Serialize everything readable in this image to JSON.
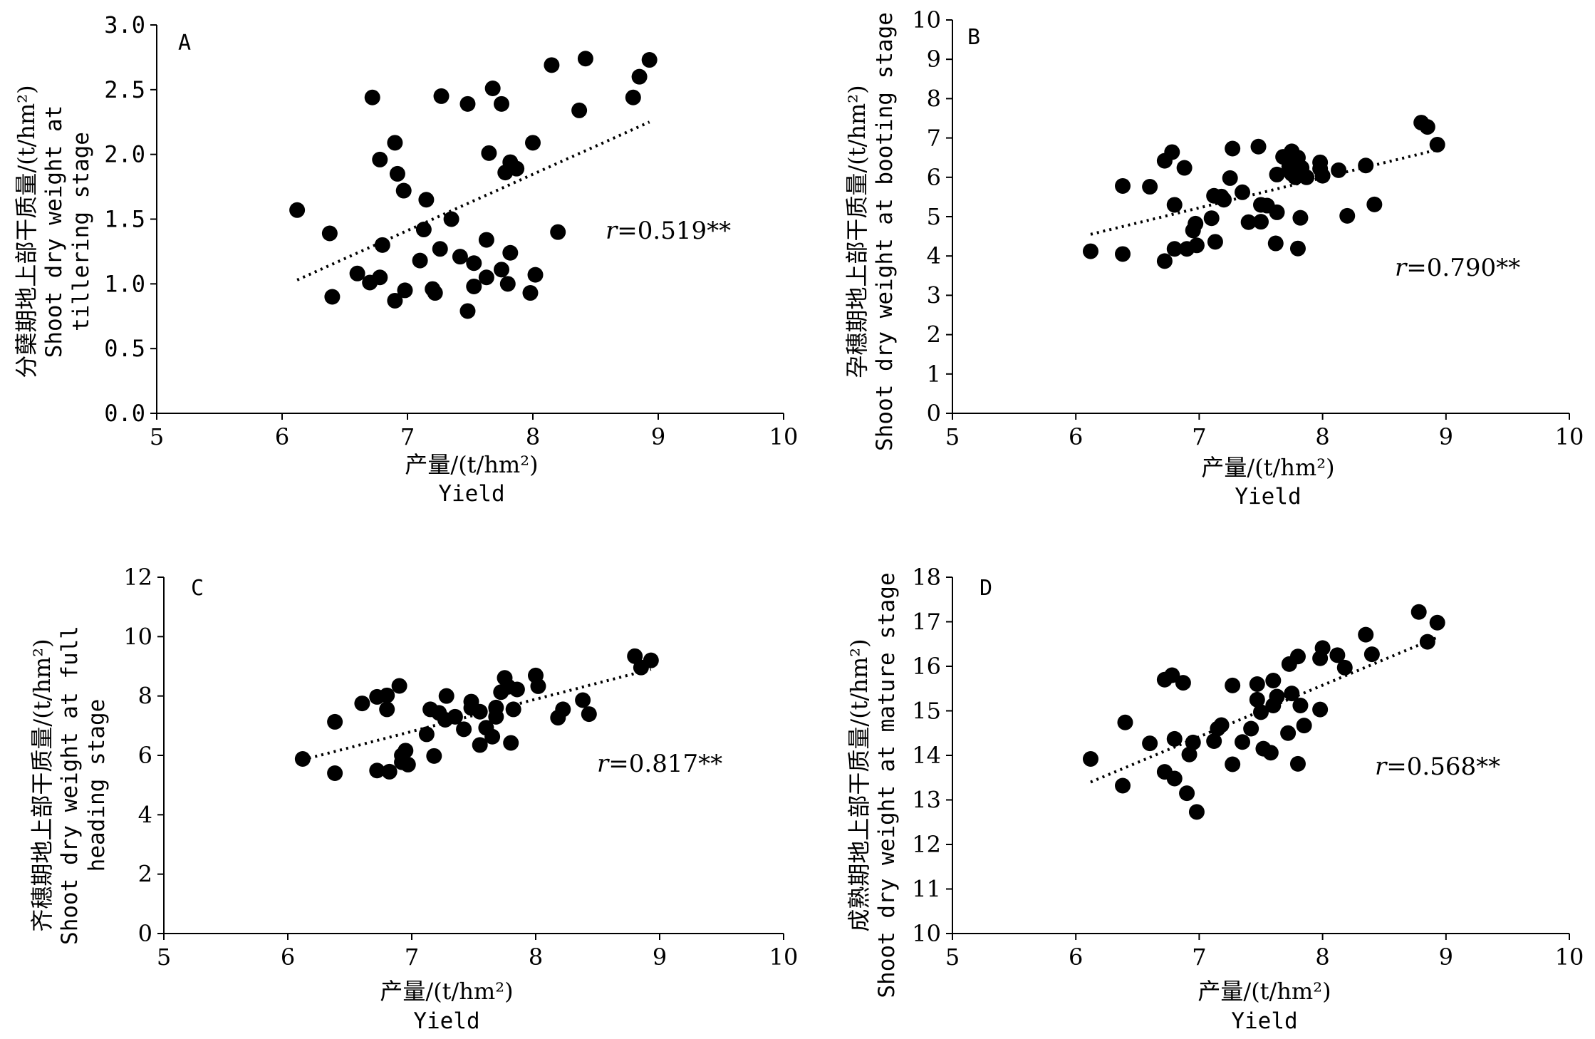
{
  "chart_data": [
    {
      "id": "A",
      "type": "scatter",
      "panel_label": "A",
      "xlabel_cn": "产量/(t/hm²)",
      "xlabel_en": "Yield",
      "ylabel_lines": [
        "分蘖期地上部干质量/(t/hm²)",
        "Shoot dry weight at",
        "tillering stage"
      ],
      "xlim": [
        5,
        10
      ],
      "xticks": [
        "5",
        "6",
        "7",
        "8",
        "9",
        "10"
      ],
      "ylim": [
        0,
        3
      ],
      "yticks": [
        "0.0",
        "0.5",
        "1.0",
        "1.5",
        "2.0",
        "2.5",
        "3.0"
      ],
      "r_label": "r",
      "r_value": "=0.519**",
      "trend": {
        "x": [
          6.12,
          8.93
        ],
        "y": [
          1.03,
          2.25
        ]
      },
      "points": [
        [
          6.12,
          1.57
        ],
        [
          6.38,
          1.39
        ],
        [
          6.4,
          0.9
        ],
        [
          6.6,
          1.08
        ],
        [
          6.7,
          1.01
        ],
        [
          6.72,
          2.44
        ],
        [
          6.78,
          1.05
        ],
        [
          6.78,
          1.96
        ],
        [
          6.8,
          1.3
        ],
        [
          6.9,
          2.09
        ],
        [
          6.9,
          0.87
        ],
        [
          6.92,
          1.85
        ],
        [
          6.97,
          1.72
        ],
        [
          6.98,
          0.95
        ],
        [
          7.1,
          1.18
        ],
        [
          7.13,
          1.42
        ],
        [
          7.15,
          1.65
        ],
        [
          7.2,
          0.96
        ],
        [
          7.22,
          0.93
        ],
        [
          7.26,
          1.27
        ],
        [
          7.27,
          2.45
        ],
        [
          7.35,
          1.5
        ],
        [
          7.42,
          1.21
        ],
        [
          7.48,
          0.79
        ],
        [
          7.48,
          2.39
        ],
        [
          7.53,
          0.98
        ],
        [
          7.53,
          1.16
        ],
        [
          7.63,
          1.05
        ],
        [
          7.63,
          1.34
        ],
        [
          7.65,
          2.01
        ],
        [
          7.68,
          2.51
        ],
        [
          7.75,
          1.11
        ],
        [
          7.75,
          2.39
        ],
        [
          7.78,
          1.86
        ],
        [
          7.8,
          1.0
        ],
        [
          7.82,
          1.24
        ],
        [
          7.82,
          1.94
        ],
        [
          7.87,
          1.89
        ],
        [
          7.98,
          0.93
        ],
        [
          8.0,
          2.09
        ],
        [
          8.02,
          1.07
        ],
        [
          8.15,
          2.69
        ],
        [
          8.2,
          1.4
        ],
        [
          8.37,
          2.34
        ],
        [
          8.42,
          2.74
        ],
        [
          8.8,
          2.44
        ],
        [
          8.85,
          2.6
        ],
        [
          8.93,
          2.73
        ]
      ]
    },
    {
      "id": "B",
      "type": "scatter",
      "panel_label": "B",
      "xlabel_cn": "产量/(t/hm²)",
      "xlabel_en": "Yield",
      "ylabel_lines": [
        "孕穗期地上部干质量/(t/hm²)",
        "Shoot dry weight at booting stage"
      ],
      "xlim": [
        5,
        10
      ],
      "xticks": [
        "5",
        "6",
        "7",
        "8",
        "9",
        "10"
      ],
      "ylim": [
        0,
        10
      ],
      "yticks": [
        "0",
        "1",
        "2",
        "3",
        "4",
        "5",
        "6",
        "7",
        "8",
        "9",
        "10"
      ],
      "r_label": "r",
      "r_value": "=0.790**",
      "trend": {
        "x": [
          6.12,
          8.93
        ],
        "y": [
          4.55,
          6.7
        ]
      },
      "points": [
        [
          6.12,
          4.12
        ],
        [
          6.38,
          4.05
        ],
        [
          6.38,
          5.78
        ],
        [
          6.6,
          5.76
        ],
        [
          6.72,
          3.87
        ],
        [
          6.72,
          6.42
        ],
        [
          6.78,
          6.64
        ],
        [
          6.8,
          5.3
        ],
        [
          6.8,
          4.18
        ],
        [
          6.88,
          6.24
        ],
        [
          6.9,
          4.18
        ],
        [
          6.95,
          4.65
        ],
        [
          6.97,
          4.82
        ],
        [
          6.98,
          4.27
        ],
        [
          7.1,
          4.96
        ],
        [
          7.12,
          5.53
        ],
        [
          7.13,
          4.36
        ],
        [
          7.18,
          5.51
        ],
        [
          7.2,
          5.43
        ],
        [
          7.25,
          5.98
        ],
        [
          7.27,
          6.73
        ],
        [
          7.35,
          5.62
        ],
        [
          7.4,
          4.86
        ],
        [
          7.48,
          6.78
        ],
        [
          7.5,
          5.3
        ],
        [
          7.5,
          4.87
        ],
        [
          7.55,
          5.28
        ],
        [
          7.62,
          4.32
        ],
        [
          7.63,
          6.07
        ],
        [
          7.63,
          5.11
        ],
        [
          7.68,
          6.52
        ],
        [
          7.73,
          6.28
        ],
        [
          7.75,
          6.09
        ],
        [
          7.75,
          6.66
        ],
        [
          7.78,
          6.0
        ],
        [
          7.8,
          6.5
        ],
        [
          7.8,
          4.19
        ],
        [
          7.82,
          4.97
        ],
        [
          7.83,
          6.24
        ],
        [
          7.87,
          6.0
        ],
        [
          7.98,
          6.38
        ],
        [
          7.98,
          6.22
        ],
        [
          8.0,
          6.04
        ],
        [
          8.13,
          6.18
        ],
        [
          8.2,
          5.02
        ],
        [
          8.35,
          6.3
        ],
        [
          8.42,
          5.31
        ],
        [
          8.8,
          7.39
        ],
        [
          8.85,
          7.28
        ],
        [
          8.93,
          6.83
        ]
      ]
    },
    {
      "id": "C",
      "type": "scatter",
      "panel_label": "C",
      "xlabel_cn": "产量/(t/hm²)",
      "xlabel_en": "Yield",
      "ylabel_lines": [
        "齐穗期地上部干质量/(t/hm²)",
        "Shoot dry weight at full",
        "heading stage"
      ],
      "xlim": [
        5,
        10
      ],
      "xticks": [
        "5",
        "6",
        "7",
        "8",
        "9",
        "10"
      ],
      "ylim": [
        0,
        12
      ],
      "yticks": [
        "0",
        "2",
        "4",
        "6",
        "8",
        "10",
        "12"
      ],
      "r_label": "r",
      "r_value": "=0.817**",
      "trend": {
        "x": [
          6.12,
          8.93
        ],
        "y": [
          5.85,
          8.9
        ]
      },
      "points": [
        [
          6.12,
          5.88
        ],
        [
          6.38,
          5.4
        ],
        [
          6.38,
          7.13
        ],
        [
          6.6,
          7.75
        ],
        [
          6.72,
          5.49
        ],
        [
          6.72,
          7.97
        ],
        [
          6.8,
          8.02
        ],
        [
          6.8,
          7.55
        ],
        [
          6.82,
          5.45
        ],
        [
          6.9,
          8.34
        ],
        [
          6.92,
          6.0
        ],
        [
          6.92,
          5.77
        ],
        [
          6.95,
          6.16
        ],
        [
          6.97,
          5.69
        ],
        [
          7.12,
          6.71
        ],
        [
          7.15,
          7.55
        ],
        [
          7.18,
          5.98
        ],
        [
          7.22,
          7.43
        ],
        [
          7.27,
          7.2
        ],
        [
          7.28,
          8.0
        ],
        [
          7.35,
          7.3
        ],
        [
          7.42,
          6.88
        ],
        [
          7.48,
          7.81
        ],
        [
          7.48,
          7.6
        ],
        [
          7.55,
          7.47
        ],
        [
          7.55,
          6.35
        ],
        [
          7.6,
          6.93
        ],
        [
          7.65,
          6.63
        ],
        [
          7.68,
          7.61
        ],
        [
          7.68,
          7.3
        ],
        [
          7.72,
          8.13
        ],
        [
          7.75,
          8.61
        ],
        [
          7.78,
          8.31
        ],
        [
          7.8,
          6.42
        ],
        [
          7.82,
          7.55
        ],
        [
          7.85,
          8.22
        ],
        [
          8.0,
          8.69
        ],
        [
          8.02,
          8.33
        ],
        [
          8.18,
          7.27
        ],
        [
          8.22,
          7.55
        ],
        [
          8.38,
          7.86
        ],
        [
          8.43,
          7.39
        ],
        [
          8.8,
          9.34
        ],
        [
          8.85,
          8.96
        ],
        [
          8.93,
          9.2
        ]
      ]
    },
    {
      "id": "D",
      "type": "scatter",
      "panel_label": "D",
      "xlabel_cn": "产量/(t/hm²)",
      "xlabel_en": "Yield",
      "ylabel_lines": [
        "成熟期地上部干质量/(t/hm²)",
        "Shoot dry weight at mature stage"
      ],
      "xlim": [
        5,
        10
      ],
      "xticks": [
        "5",
        "6",
        "7",
        "8",
        "9",
        "10"
      ],
      "ylim": [
        10,
        18
      ],
      "yticks": [
        "10",
        "11",
        "12",
        "13",
        "14",
        "15",
        "16",
        "17",
        "18"
      ],
      "r_label": "r",
      "r_value": "=0.568**",
      "trend": {
        "x": [
          6.12,
          8.93
        ],
        "y": [
          13.4,
          16.65
        ]
      },
      "points": [
        [
          6.12,
          13.92
        ],
        [
          6.38,
          13.32
        ],
        [
          6.4,
          14.74
        ],
        [
          6.6,
          14.27
        ],
        [
          6.72,
          13.63
        ],
        [
          6.72,
          15.7
        ],
        [
          6.78,
          15.8
        ],
        [
          6.8,
          14.37
        ],
        [
          6.8,
          13.48
        ],
        [
          6.87,
          15.63
        ],
        [
          6.9,
          13.15
        ],
        [
          6.92,
          14.02
        ],
        [
          6.95,
          14.29
        ],
        [
          6.98,
          12.73
        ],
        [
          7.12,
          14.32
        ],
        [
          7.15,
          14.6
        ],
        [
          7.18,
          14.68
        ],
        [
          7.27,
          13.8
        ],
        [
          7.27,
          15.57
        ],
        [
          7.35,
          14.3
        ],
        [
          7.42,
          14.6
        ],
        [
          7.47,
          15.25
        ],
        [
          7.47,
          15.6
        ],
        [
          7.5,
          14.97
        ],
        [
          7.52,
          14.15
        ],
        [
          7.58,
          14.06
        ],
        [
          7.6,
          15.12
        ],
        [
          7.6,
          15.68
        ],
        [
          7.63,
          15.32
        ],
        [
          7.72,
          14.5
        ],
        [
          7.73,
          16.05
        ],
        [
          7.75,
          15.39
        ],
        [
          7.8,
          16.22
        ],
        [
          7.8,
          13.81
        ],
        [
          7.82,
          15.12
        ],
        [
          7.85,
          14.67
        ],
        [
          7.98,
          15.03
        ],
        [
          7.98,
          16.18
        ],
        [
          8.0,
          16.41
        ],
        [
          8.12,
          16.25
        ],
        [
          8.18,
          15.97
        ],
        [
          8.35,
          16.71
        ],
        [
          8.4,
          16.27
        ],
        [
          8.78,
          17.22
        ],
        [
          8.85,
          16.55
        ],
        [
          8.93,
          16.98
        ]
      ]
    }
  ]
}
